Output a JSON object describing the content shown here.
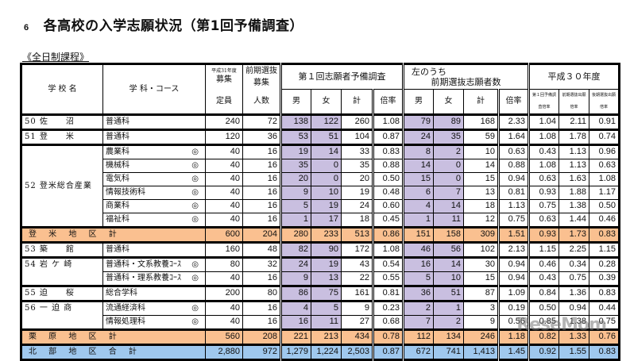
{
  "title": {
    "number": "6",
    "text": "各高校の入学志願状況（第1回予備調査）"
  },
  "subtitle": "《全日制課程》",
  "headers": {
    "school": "学 校 名",
    "course": "学 科・コース",
    "capacity_note": "平成31年度",
    "capacity_l1": "募集",
    "capacity_l2": "定員",
    "early_note": "前期選抜",
    "early_l1": "募集",
    "early_l2": "人数",
    "survey_group": "第１回志願者予備調査",
    "early_group_l1": "左のうち",
    "early_group_l2": "前期選抜志願者数",
    "prev_group": "平成３０年度",
    "male": "男",
    "female": "女",
    "total": "計",
    "ratio": "倍率",
    "prev_col1": "第１回予備調査倍率",
    "prev_col2": "前期選抜出願倍率",
    "prev_col3": "後期選抜出願倍率"
  },
  "rows": [
    {
      "school": "50 佐　　沼",
      "course": "普通科",
      "mark": "",
      "cap": "240",
      "early": "72",
      "m": "138",
      "f": "122",
      "t": "260",
      "r": "1.08",
      "em": "79",
      "ef": "89",
      "et": "168",
      "er": "2.33",
      "p1": "1.04",
      "p2": "2.11",
      "p3": "0.91"
    },
    {
      "school": "51 登　　米",
      "course": "普通科",
      "mark": "",
      "cap": "120",
      "early": "36",
      "m": "53",
      "f": "51",
      "t": "104",
      "r": "0.87",
      "em": "24",
      "ef": "35",
      "et": "59",
      "er": "1.64",
      "p1": "1.08",
      "p2": "1.78",
      "p3": "0.74"
    },
    {
      "school": "52 登米総合産業",
      "course": "農業科",
      "mark": "◎",
      "cap": "40",
      "early": "16",
      "m": "19",
      "f": "14",
      "t": "33",
      "r": "0.83",
      "em": "8",
      "ef": "2",
      "et": "10",
      "er": "0.63",
      "p1": "0.43",
      "p2": "1.13",
      "p3": "0.96"
    },
    {
      "school": "",
      "course": "機械科",
      "mark": "◎",
      "cap": "40",
      "early": "16",
      "m": "35",
      "f": "0",
      "t": "35",
      "r": "0.88",
      "em": "14",
      "ef": "0",
      "et": "14",
      "er": "0.88",
      "p1": "1.08",
      "p2": "1.13",
      "p3": "0.63"
    },
    {
      "school": "",
      "course": "電気科",
      "mark": "◎",
      "cap": "40",
      "early": "16",
      "m": "20",
      "f": "0",
      "t": "20",
      "r": "0.50",
      "em": "15",
      "ef": "0",
      "et": "15",
      "er": "0.94",
      "p1": "0.63",
      "p2": "1.63",
      "p3": "1.08"
    },
    {
      "school": "",
      "course": "情報技術科",
      "mark": "◎",
      "cap": "40",
      "early": "16",
      "m": "9",
      "f": "10",
      "t": "19",
      "r": "0.48",
      "em": "6",
      "ef": "7",
      "et": "13",
      "er": "0.81",
      "p1": "0.93",
      "p2": "1.88",
      "p3": "1.17"
    },
    {
      "school": "",
      "course": "商業科",
      "mark": "◎",
      "cap": "40",
      "early": "16",
      "m": "5",
      "f": "19",
      "t": "24",
      "r": "0.60",
      "em": "4",
      "ef": "14",
      "et": "18",
      "er": "1.13",
      "p1": "0.75",
      "p2": "1.38",
      "p3": "0.50"
    },
    {
      "school": "",
      "course": "福祉科",
      "mark": "◎",
      "cap": "40",
      "early": "16",
      "m": "1",
      "f": "17",
      "t": "18",
      "r": "0.45",
      "em": "1",
      "ef": "11",
      "et": "12",
      "er": "0.75",
      "p1": "0.63",
      "p2": "1.44",
      "p3": "0.46"
    },
    {
      "label": "登 米 地 区 計",
      "cap": "600",
      "early": "204",
      "m": "280",
      "f": "233",
      "t": "513",
      "r": "0.86",
      "em": "151",
      "ef": "158",
      "et": "309",
      "er": "1.51",
      "p1": "0.93",
      "p2": "1.73",
      "p3": "0.83"
    },
    {
      "school": "53 築　　館",
      "course": "普通科",
      "mark": "",
      "cap": "160",
      "early": "48",
      "m": "82",
      "f": "90",
      "t": "172",
      "r": "1.08",
      "em": "46",
      "ef": "56",
      "et": "102",
      "er": "2.13",
      "p1": "1.15",
      "p2": "2.25",
      "p3": "1.15"
    },
    {
      "school": "54 岩 ケ 崎",
      "course": "普通科・文系教養ｺｰｽ",
      "mark": "◎",
      "cap": "80",
      "early": "32",
      "m": "24",
      "f": "19",
      "t": "43",
      "r": "0.54",
      "em": "16",
      "ef": "14",
      "et": "30",
      "er": "0.94",
      "p1": "0.46",
      "p2": "0.34",
      "p3": "0.28"
    },
    {
      "school": "",
      "course": "普通科・理系教養ｺｰｽ",
      "mark": "◎",
      "cap": "40",
      "early": "16",
      "m": "9",
      "f": "13",
      "t": "22",
      "r": "0.55",
      "em": "5",
      "ef": "10",
      "et": "15",
      "er": "0.94",
      "p1": "0.43",
      "p2": "0.75",
      "p3": "0.39"
    },
    {
      "school": "55 迫　　桜",
      "course": "総合学科",
      "mark": "",
      "cap": "200",
      "early": "80",
      "m": "86",
      "f": "75",
      "t": "161",
      "r": "0.81",
      "em": "36",
      "ef": "51",
      "et": "87",
      "er": "1.09",
      "p1": "0.84",
      "p2": "1.36",
      "p3": "0.83"
    },
    {
      "school": "56 一 迫 商",
      "course": "流通経済科",
      "mark": "◎",
      "cap": "40",
      "early": "16",
      "m": "4",
      "f": "5",
      "t": "9",
      "r": "0.23",
      "em": "2",
      "ef": "1",
      "et": "3",
      "er": "0.19",
      "p1": "0.50",
      "p2": "0.94",
      "p3": "0.44"
    },
    {
      "school": "",
      "course": "情報処理科",
      "mark": "◎",
      "cap": "40",
      "early": "16",
      "m": "16",
      "f": "11",
      "t": "27",
      "r": "0.68",
      "em": "7",
      "ef": "2",
      "et": "9",
      "er": "0.56",
      "p1": "0.85",
      "p2": "1.38",
      "p3": "0.75"
    },
    {
      "label": "栗 原 地 区 計",
      "cap": "560",
      "early": "208",
      "m": "221",
      "f": "213",
      "t": "434",
      "r": "0.78",
      "em": "112",
      "ef": "134",
      "et": "246",
      "er": "1.18",
      "p1": "0.82",
      "p2": "1.33",
      "p3": "0.76"
    },
    {
      "label": "北 部 地 区 合 計",
      "cap": "2,880",
      "early": "972",
      "m": "1,279",
      "f": "1,224",
      "t": "2,503",
      "r": "0.87",
      "em": "672",
      "ef": "741",
      "et": "1,413",
      "er": "1.45",
      "p1": "0.92",
      "p2": "1.55",
      "p3": "0.83"
    }
  ],
  "watermark": "ReseMom",
  "colors": {
    "lavender": "#c9bfe0",
    "orange_subtotal": "#fac090",
    "blue_total": "#9fc8ee"
  }
}
